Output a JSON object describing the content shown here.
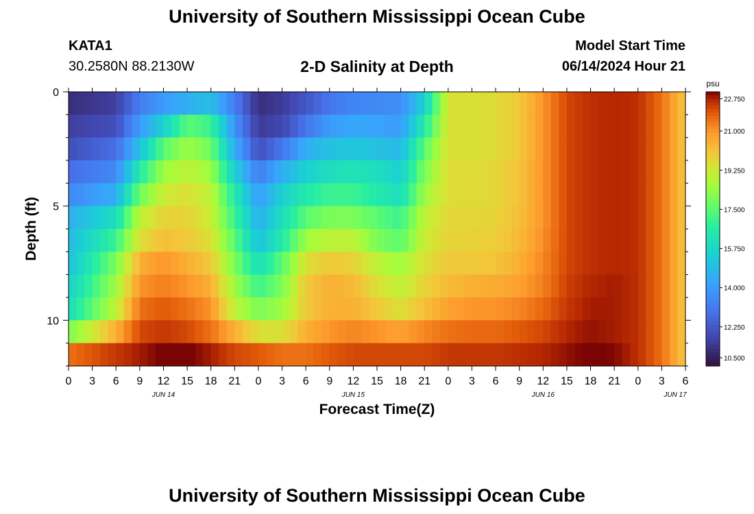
{
  "header": {
    "title": "University of Southern Mississippi Ocean Cube",
    "station": "KATA1",
    "coordinates": "30.2580N  88.2130W",
    "plot_title": "2-D Salinity at Depth",
    "model_start_label": "Model Start Time",
    "model_start_value": "06/14/2024 Hour 21"
  },
  "footer": {
    "title": "University of Southern Mississippi Ocean Cube"
  },
  "chart_data": {
    "type": "heatmap",
    "title": "2-D Salinity at Depth",
    "xlabel": "Forecast Time(Z)",
    "ylabel": "Depth (ft)",
    "x_tick_labels": [
      "0",
      "3",
      "6",
      "9",
      "12",
      "15",
      "18",
      "21",
      "0",
      "3",
      "6",
      "9",
      "12",
      "15",
      "18",
      "21",
      "0",
      "3",
      "6",
      "9",
      "12",
      "15",
      "18",
      "21",
      "0",
      "3",
      "6"
    ],
    "date_labels": [
      "JUN 14",
      "JUN 15",
      "JUN 16",
      "JUN 17"
    ],
    "x_hours_range": [
      0,
      78
    ],
    "ylim": [
      0,
      12
    ],
    "y_ticks": [
      0,
      5,
      10
    ],
    "colorbar": {
      "unit": "psu",
      "ticks": [
        "22.750",
        "21.000",
        "19.250",
        "17.500",
        "15.750",
        "14.000",
        "12.250",
        "10.500"
      ],
      "range": [
        10.5,
        22.75
      ]
    },
    "depth_levels_ft": [
      0.5,
      1.5,
      2.5,
      3.5,
      4.5,
      5.5,
      6.5,
      7.5,
      8.5,
      9.5,
      10.5,
      11.5
    ],
    "keyframe_hours": [
      0,
      6,
      9,
      12,
      15,
      18,
      21,
      24,
      27,
      30,
      33,
      36,
      39,
      42,
      45,
      48,
      51,
      54,
      57,
      60,
      63,
      66,
      69,
      72,
      75,
      78
    ],
    "salinity_psu": [
      [
        11.2,
        11.6,
        13.2,
        14.0,
        14.5,
        15.0,
        13.2,
        11.2,
        11.5,
        12.2,
        13.0,
        13.4,
        13.5,
        13.6,
        15.5,
        19.5,
        19.5,
        19.6,
        20.0,
        21.0,
        22.0,
        22.3,
        22.4,
        22.3,
        21.5,
        20.0
      ],
      [
        11.6,
        12.0,
        14.0,
        15.5,
        17.5,
        17.0,
        13.8,
        11.5,
        11.8,
        13.0,
        14.0,
        14.3,
        14.2,
        14.0,
        16.5,
        19.5,
        19.5,
        19.6,
        20.0,
        21.0,
        22.0,
        22.3,
        22.4,
        22.3,
        21.5,
        20.0
      ],
      [
        12.0,
        12.8,
        15.0,
        17.5,
        18.5,
        17.8,
        14.5,
        12.0,
        13.0,
        14.5,
        15.0,
        15.2,
        15.0,
        14.8,
        17.5,
        19.5,
        19.5,
        19.6,
        20.0,
        21.0,
        22.0,
        22.3,
        22.4,
        22.3,
        21.5,
        20.0
      ],
      [
        12.8,
        13.5,
        16.5,
        18.5,
        19.0,
        18.5,
        15.5,
        13.2,
        14.5,
        15.5,
        16.0,
        16.2,
        16.0,
        15.5,
        18.0,
        19.6,
        19.6,
        19.7,
        20.1,
        21.0,
        22.0,
        22.3,
        22.4,
        22.3,
        21.5,
        20.0
      ],
      [
        13.5,
        14.5,
        17.8,
        19.2,
        19.5,
        19.0,
        16.5,
        14.0,
        15.5,
        16.5,
        17.0,
        17.0,
        16.5,
        16.0,
        18.5,
        19.6,
        19.6,
        19.7,
        20.1,
        21.0,
        22.0,
        22.3,
        22.4,
        22.3,
        21.5,
        20.0
      ],
      [
        14.5,
        16.0,
        19.0,
        19.8,
        19.8,
        19.2,
        17.0,
        14.5,
        16.0,
        17.5,
        18.0,
        18.0,
        17.5,
        17.0,
        19.0,
        19.7,
        19.7,
        19.8,
        20.2,
        21.0,
        22.0,
        22.3,
        22.4,
        22.3,
        21.5,
        20.0
      ],
      [
        14.8,
        17.0,
        19.5,
        20.2,
        20.0,
        19.5,
        17.5,
        15.0,
        16.5,
        18.5,
        19.0,
        19.0,
        18.0,
        17.5,
        19.2,
        19.8,
        19.8,
        19.9,
        20.3,
        21.1,
        22.0,
        22.3,
        22.4,
        22.3,
        21.5,
        20.0
      ],
      [
        15.0,
        18.0,
        20.5,
        21.0,
        20.5,
        20.0,
        18.0,
        16.0,
        17.5,
        19.5,
        20.0,
        19.8,
        19.0,
        18.5,
        19.5,
        20.0,
        20.0,
        20.1,
        20.5,
        21.2,
        22.0,
        22.3,
        22.4,
        22.3,
        21.5,
        20.0
      ],
      [
        15.5,
        18.5,
        21.0,
        21.3,
        21.0,
        20.5,
        18.5,
        17.0,
        18.0,
        20.0,
        20.5,
        20.3,
        19.5,
        19.0,
        19.8,
        20.3,
        20.5,
        20.6,
        20.8,
        21.3,
        22.1,
        22.4,
        22.5,
        22.3,
        21.5,
        20.0
      ],
      [
        16.0,
        19.0,
        21.5,
        21.8,
        21.5,
        21.0,
        19.0,
        18.0,
        18.5,
        20.0,
        20.5,
        20.5,
        20.0,
        19.5,
        20.2,
        20.8,
        21.0,
        21.0,
        21.2,
        21.6,
        22.2,
        22.5,
        22.5,
        22.3,
        21.5,
        20.0
      ],
      [
        18.0,
        20.5,
        22.0,
        22.2,
        22.0,
        21.5,
        20.5,
        19.5,
        19.5,
        20.5,
        21.0,
        21.2,
        21.0,
        20.8,
        21.2,
        21.5,
        21.6,
        21.6,
        21.8,
        22.0,
        22.4,
        22.6,
        22.5,
        22.3,
        21.5,
        20.0
      ],
      [
        21.5,
        22.2,
        22.5,
        22.8,
        22.8,
        22.5,
        22.0,
        21.8,
        21.5,
        21.5,
        21.8,
        22.0,
        22.0,
        22.0,
        22.0,
        22.2,
        22.2,
        22.2,
        22.3,
        22.4,
        22.6,
        22.8,
        22.7,
        22.3,
        21.5,
        20.0
      ]
    ]
  }
}
